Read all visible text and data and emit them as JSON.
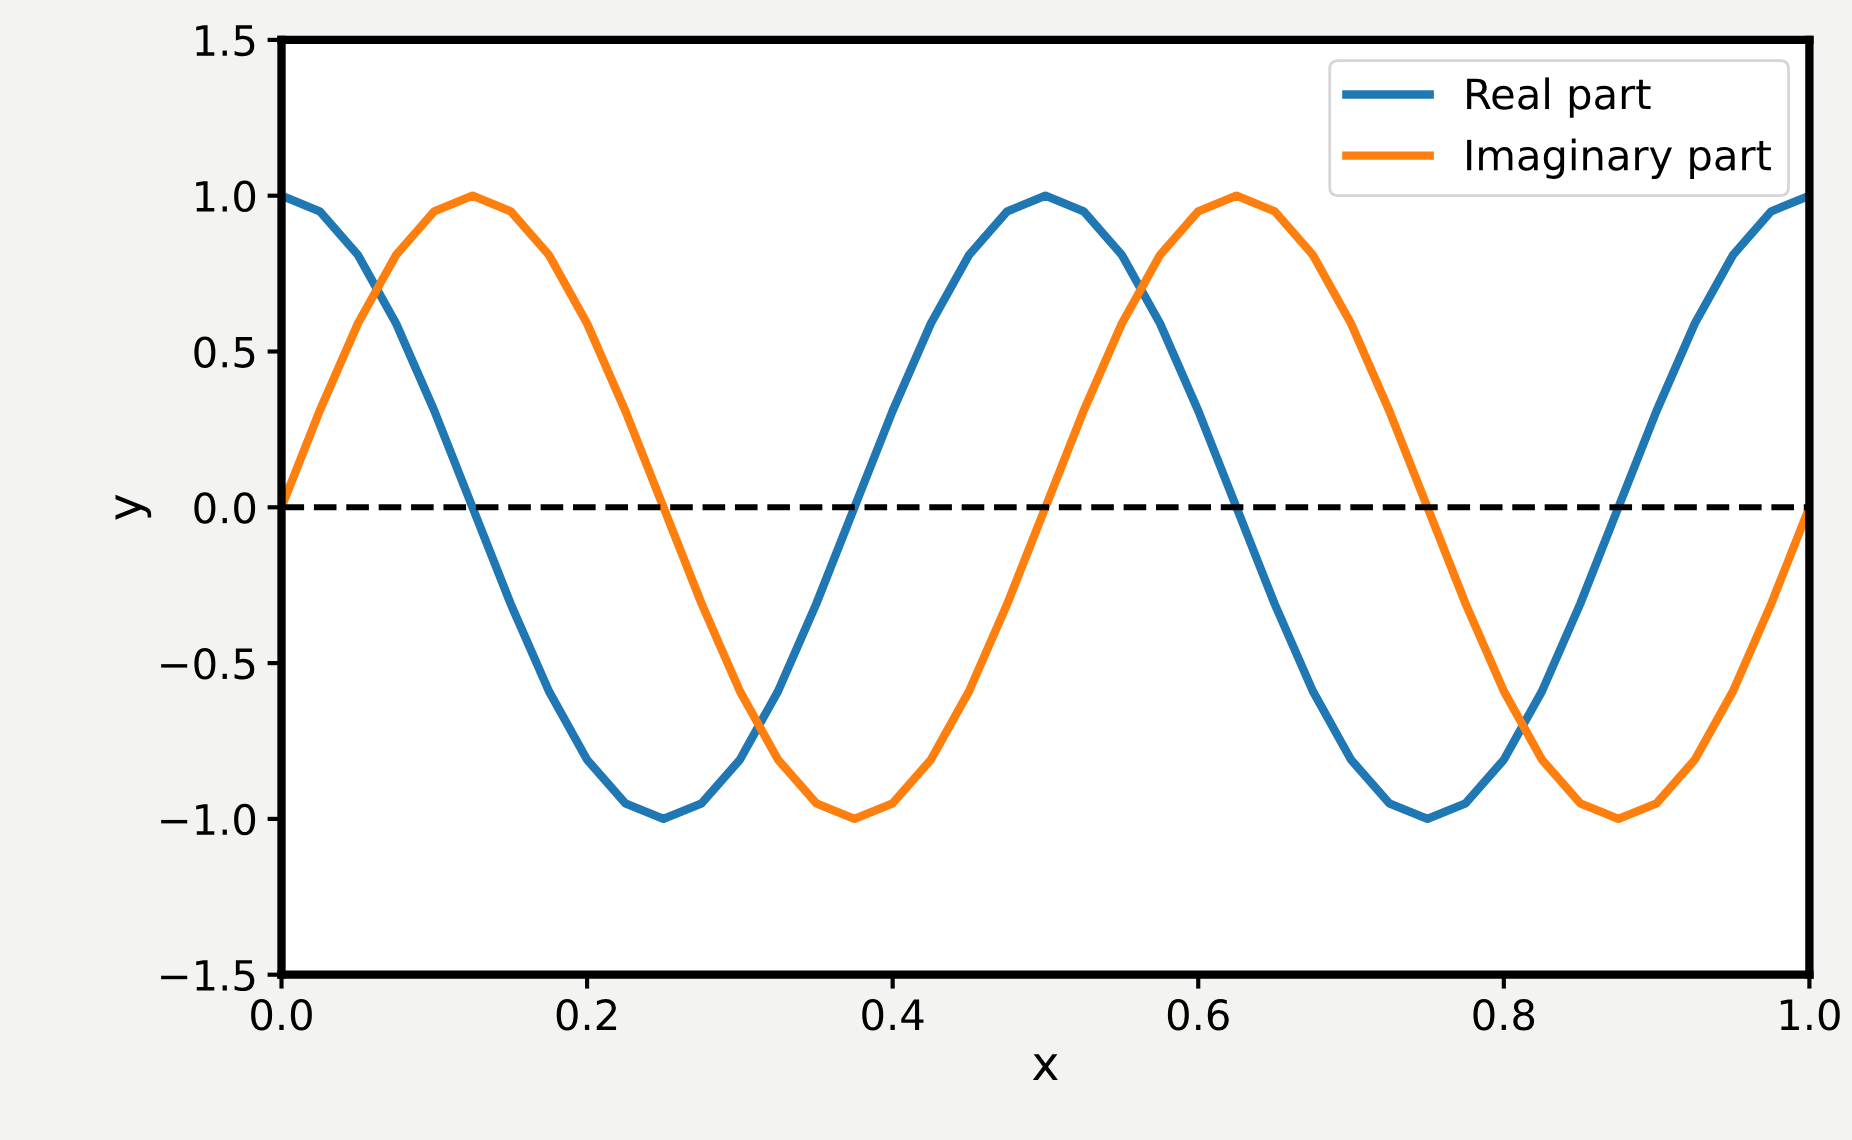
{
  "chart_data": {
    "type": "line",
    "xlabel": "x",
    "ylabel": "y",
    "x": [
      0,
      0.025,
      0.05,
      0.075,
      0.1,
      0.125,
      0.15,
      0.175,
      0.2,
      0.225,
      0.25,
      0.275,
      0.3,
      0.325,
      0.35,
      0.375,
      0.4,
      0.425,
      0.45,
      0.475,
      0.5,
      0.525,
      0.55,
      0.575,
      0.6,
      0.625,
      0.65,
      0.675,
      0.7,
      0.725,
      0.75,
      0.775,
      0.8,
      0.825,
      0.85,
      0.875,
      0.9,
      0.925,
      0.95,
      0.975,
      1.0
    ],
    "series": [
      {
        "name": "Real part",
        "color": "#1f77b4",
        "values": [
          1,
          0.95,
          0.81,
          0.59,
          0.31,
          0,
          -0.31,
          -0.59,
          -0.81,
          -0.95,
          -1,
          -0.95,
          -0.81,
          -0.59,
          -0.31,
          0,
          0.31,
          0.59,
          0.81,
          0.95,
          1,
          0.95,
          0.81,
          0.59,
          0.31,
          0,
          -0.31,
          -0.59,
          -0.81,
          -0.95,
          -1,
          -0.95,
          -0.81,
          -0.59,
          -0.31,
          0,
          0.31,
          0.59,
          0.81,
          0.95,
          1
        ]
      },
      {
        "name": "Imaginary part",
        "color": "#ff7f0e",
        "values": [
          0,
          0.31,
          0.59,
          0.81,
          0.95,
          1,
          0.95,
          0.81,
          0.59,
          0.31,
          0,
          -0.31,
          -0.59,
          -0.81,
          -0.95,
          -1,
          -0.95,
          -0.81,
          -0.59,
          -0.31,
          0,
          0.31,
          0.59,
          0.81,
          0.95,
          1,
          0.95,
          0.81,
          0.59,
          0.31,
          0,
          -0.31,
          -0.59,
          -0.81,
          -0.95,
          -1,
          -0.95,
          -0.81,
          -0.59,
          -0.31,
          0
        ]
      }
    ],
    "xlim": [
      0,
      1
    ],
    "ylim": [
      -1.5,
      1.5
    ],
    "xticks": [
      {
        "value": 0,
        "label": "0.0"
      },
      {
        "value": 0.2,
        "label": "0.2"
      },
      {
        "value": 0.4,
        "label": "0.4"
      },
      {
        "value": 0.6,
        "label": "0.6"
      },
      {
        "value": 0.8,
        "label": "0.8"
      },
      {
        "value": 1,
        "label": "1.0"
      }
    ],
    "yticks": [
      {
        "value": -1.5,
        "label": "−1.5"
      },
      {
        "value": -1,
        "label": "−1.0"
      },
      {
        "value": -0.5,
        "label": "−0.5"
      },
      {
        "value": 0,
        "label": "0.0"
      },
      {
        "value": 0.5,
        "label": "0.5"
      },
      {
        "value": 1,
        "label": "1.0"
      },
      {
        "value": 1.5,
        "label": "1.5"
      }
    ],
    "ref_lines": [
      {
        "axis": "y",
        "value": 0,
        "color": "#000000",
        "line_style": "dashed"
      }
    ],
    "legend": "top right",
    "grid": false
  }
}
